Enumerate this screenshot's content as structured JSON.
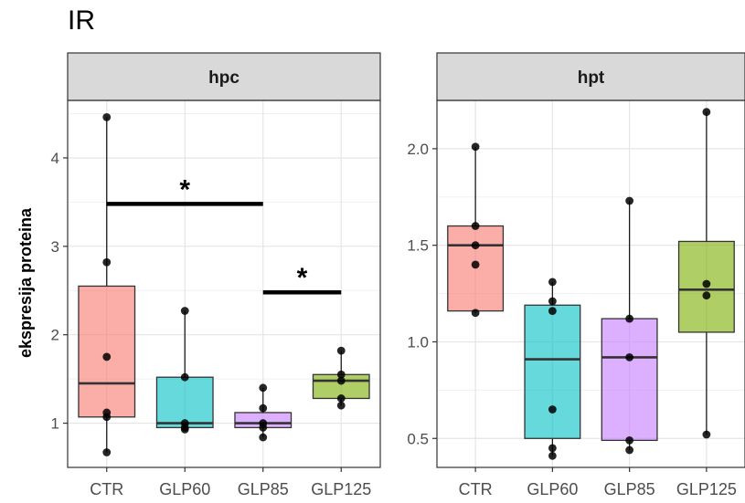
{
  "title": "IR",
  "chart_data": {
    "type": "box",
    "title": "IR",
    "ylabel": "ekspresija proteina",
    "categories": [
      "CTR",
      "GLP60",
      "GLP85",
      "GLP125"
    ],
    "colors": {
      "CTR": "#f8766d",
      "GLP60": "#00bfc4",
      "GLP85": "#c77cff",
      "GLP125": "#7cae00"
    },
    "grid": true,
    "panels": [
      {
        "name": "hpc",
        "ylim": [
          0.5,
          4.65
        ],
        "yticks": [
          1,
          2,
          3,
          4
        ],
        "boxes": [
          {
            "category": "CTR",
            "min": 0.67,
            "q1": 1.07,
            "median": 1.45,
            "q3": 2.55,
            "max": 4.46,
            "points": [
              0.67,
              1.07,
              1.12,
              1.75,
              2.82,
              4.46
            ]
          },
          {
            "category": "GLP60",
            "min": 0.93,
            "q1": 0.95,
            "median": 1.0,
            "q3": 1.52,
            "max": 2.27,
            "points": [
              0.93,
              0.95,
              1.0,
              1.52,
              2.27
            ]
          },
          {
            "category": "GLP85",
            "min": 0.84,
            "q1": 0.95,
            "median": 1.0,
            "q3": 1.12,
            "max": 1.4,
            "points": [
              0.84,
              0.95,
              1.0,
              1.17,
              1.4
            ]
          },
          {
            "category": "GLP125",
            "min": 1.2,
            "q1": 1.28,
            "median": 1.48,
            "q3": 1.55,
            "max": 1.82,
            "points": [
              1.2,
              1.28,
              1.48,
              1.55,
              1.82
            ]
          }
        ],
        "significance": [
          {
            "from": "CTR",
            "to": "GLP85",
            "y": 3.48,
            "label": "*"
          },
          {
            "from": "GLP85",
            "to": "GLP125",
            "y": 2.48,
            "label": "*"
          }
        ]
      },
      {
        "name": "hpt",
        "ylim": [
          0.35,
          2.25
        ],
        "yticks": [
          0.5,
          1.0,
          1.5,
          2.0
        ],
        "ytick_labels": [
          "0.5",
          "1.0",
          "1.5",
          "2.0"
        ],
        "boxes": [
          {
            "category": "CTR",
            "min": 1.15,
            "q1": 1.16,
            "median": 1.5,
            "q3": 1.6,
            "max": 2.01,
            "points": [
              1.15,
              1.4,
              1.5,
              1.6,
              2.01
            ]
          },
          {
            "category": "GLP60",
            "min": 0.41,
            "q1": 0.5,
            "median": 0.91,
            "q3": 1.19,
            "max": 1.31,
            "points": [
              0.41,
              0.45,
              0.65,
              1.16,
              1.21,
              1.31
            ]
          },
          {
            "category": "GLP85",
            "min": 0.44,
            "q1": 0.49,
            "median": 0.92,
            "q3": 1.12,
            "max": 1.73,
            "points": [
              0.44,
              0.49,
              0.92,
              1.12,
              1.73
            ]
          },
          {
            "category": "GLP125",
            "min": 0.52,
            "q1": 1.05,
            "median": 1.27,
            "q3": 1.52,
            "max": 2.19,
            "points": [
              0.52,
              1.24,
              1.3,
              2.19
            ]
          }
        ],
        "significance": []
      }
    ]
  }
}
